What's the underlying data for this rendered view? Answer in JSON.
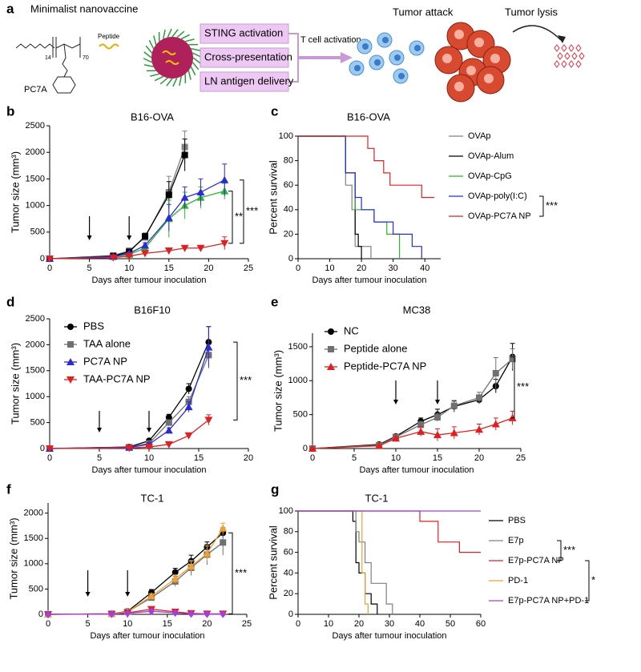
{
  "figure_a": {
    "label": "a",
    "title": "Minimalist nanovaccine",
    "peptide": "Peptide",
    "polymer": "PC7A",
    "subscripts": [
      "14",
      "70"
    ],
    "functions": [
      "STING activation",
      "Cross-presentation",
      "LN antigen delivery"
    ],
    "activation": "T cell activation",
    "attack": "Tumor attack",
    "lysis": "Tumor lysis"
  },
  "chart_data": [
    {
      "panel": "b",
      "type": "line",
      "title": "B16-OVA",
      "xlabel": "Days after tumour inoculation",
      "ylabel": "Tumor size (mm³)",
      "xlim": [
        0,
        25
      ],
      "xticks": [
        0,
        5,
        10,
        15,
        20,
        25
      ],
      "ylim": [
        0,
        2500
      ],
      "yticks": [
        0,
        500,
        1000,
        1500,
        2000,
        2500
      ],
      "arrows_x": [
        5,
        10
      ],
      "significance": [
        "**",
        "***"
      ],
      "series": [
        {
          "color": "#808080",
          "marker": "square",
          "x": [
            0,
            8,
            10,
            12,
            15,
            17
          ],
          "values": [
            0,
            60,
            150,
            400,
            1250,
            2100
          ],
          "errors": [
            0,
            20,
            30,
            60,
            300,
            300
          ]
        },
        {
          "color": "#000000",
          "marker": "square",
          "x": [
            0,
            8,
            10,
            12,
            15,
            17
          ],
          "values": [
            0,
            50,
            130,
            420,
            1200,
            1950
          ],
          "errors": [
            0,
            20,
            30,
            60,
            250,
            300
          ]
        },
        {
          "color": "#2fb52f",
          "marker": "triangle-up",
          "x": [
            0,
            8,
            10,
            12,
            15,
            17,
            19,
            22
          ],
          "values": [
            0,
            40,
            80,
            200,
            750,
            1000,
            1150,
            1270
          ],
          "errors": [
            0,
            10,
            20,
            50,
            350,
            250,
            200,
            150
          ]
        },
        {
          "color": "#2b2bd6",
          "marker": "triangle-up",
          "x": [
            0,
            8,
            10,
            12,
            15,
            17,
            19,
            22
          ],
          "values": [
            0,
            40,
            100,
            250,
            770,
            1150,
            1250,
            1480
          ],
          "errors": [
            0,
            10,
            20,
            50,
            250,
            200,
            250,
            300
          ]
        },
        {
          "color": "#e02020",
          "marker": "triangle-down",
          "x": [
            0,
            8,
            10,
            12,
            15,
            17,
            19,
            22
          ],
          "values": [
            0,
            20,
            50,
            100,
            150,
            200,
            200,
            290
          ],
          "errors": [
            0,
            5,
            10,
            20,
            30,
            40,
            50,
            120
          ]
        }
      ]
    },
    {
      "panel": "c",
      "type": "step",
      "title": "B16-OVA",
      "xlabel": "Days after tumour inoculation",
      "ylabel": "Percent survival",
      "xlim": [
        0,
        45
      ],
      "xticks": [
        0,
        10,
        20,
        30,
        40
      ],
      "ylim": [
        0,
        100
      ],
      "yticks": [
        0,
        20,
        40,
        60,
        80,
        100
      ],
      "legend": "right",
      "significance": [
        "***"
      ],
      "series": [
        {
          "name": "OVAp",
          "color": "#808080",
          "x": [
            0,
            15,
            17,
            18,
            23
          ],
          "values": [
            100,
            60,
            40,
            10,
            0
          ]
        },
        {
          "name": "OVAp-Alum",
          "color": "#000000",
          "x": [
            0,
            15,
            18,
            19,
            20
          ],
          "values": [
            100,
            70,
            20,
            10,
            0
          ]
        },
        {
          "name": "OVAp-CpG",
          "color": "#2fb52f",
          "x": [
            0,
            15,
            18,
            24,
            28,
            32
          ],
          "values": [
            100,
            70,
            40,
            30,
            20,
            0
          ]
        },
        {
          "name": "OVAp-poly(I:C)",
          "color": "#2b2bd6",
          "x": [
            0,
            15,
            18,
            20,
            24,
            30,
            36,
            39
          ],
          "values": [
            100,
            70,
            50,
            40,
            30,
            20,
            10,
            0
          ]
        },
        {
          "name": "OVAp-PC7A NP",
          "color": "#e02020",
          "x": [
            0,
            22,
            24,
            27,
            29,
            32,
            39,
            43
          ],
          "values": [
            100,
            90,
            80,
            70,
            60,
            60,
            50,
            50
          ]
        }
      ]
    },
    {
      "panel": "d",
      "type": "line",
      "title": "B16F10",
      "xlabel": "Days after tumour inoculation",
      "ylabel": "Tumor size (mm³)",
      "xlim": [
        0,
        20
      ],
      "xticks": [
        0,
        5,
        10,
        15,
        20
      ],
      "ylim": [
        0,
        2500
      ],
      "yticks": [
        0,
        500,
        1000,
        1500,
        2000,
        2500
      ],
      "arrows_x": [
        5,
        10
      ],
      "legend": "upper left",
      "significance": [
        "***"
      ],
      "series": [
        {
          "name": "PBS",
          "color": "#000000",
          "marker": "circle",
          "x": [
            0,
            8,
            10,
            12,
            14,
            16
          ],
          "values": [
            0,
            30,
            150,
            600,
            1150,
            2050
          ],
          "errors": [
            0,
            10,
            30,
            60,
            100,
            300
          ]
        },
        {
          "name": "TAA alone",
          "color": "#707070",
          "marker": "square",
          "x": [
            0,
            8,
            10,
            12,
            14,
            16
          ],
          "values": [
            0,
            25,
            100,
            500,
            900,
            1800
          ],
          "errors": [
            0,
            10,
            30,
            50,
            100,
            200
          ]
        },
        {
          "name": "PC7A NP",
          "color": "#2b2bd6",
          "marker": "triangle-up",
          "x": [
            0,
            8,
            10,
            12,
            14,
            16
          ],
          "values": [
            0,
            20,
            80,
            350,
            800,
            1950
          ],
          "errors": [
            0,
            10,
            30,
            50,
            100,
            400
          ]
        },
        {
          "name": "TAA-PC7A NP",
          "color": "#e02020",
          "marker": "triangle-down",
          "x": [
            0,
            8,
            10,
            12,
            14,
            16
          ],
          "values": [
            0,
            10,
            30,
            80,
            250,
            550
          ],
          "errors": [
            0,
            5,
            10,
            20,
            50,
            100
          ]
        }
      ]
    },
    {
      "panel": "e",
      "type": "line",
      "title": "MC38",
      "xlabel": "Days after tumour inoculation",
      "ylabel": "Tumor size (mm³)",
      "xlim": [
        0,
        25
      ],
      "xticks": [
        0,
        5,
        10,
        15,
        20,
        25
      ],
      "ylim": [
        0,
        1700
      ],
      "yticks": [
        0,
        500,
        1000,
        1500
      ],
      "arrows_x": [
        10,
        15
      ],
      "legend": "upper left",
      "significance": [
        "***"
      ],
      "series": [
        {
          "name": "NC",
          "color": "#000000",
          "marker": "circle",
          "x": [
            0,
            8,
            10,
            13,
            15,
            17,
            20,
            22,
            24
          ],
          "values": [
            0,
            60,
            180,
            400,
            500,
            620,
            720,
            920,
            1350
          ],
          "errors": [
            0,
            15,
            30,
            50,
            80,
            80,
            60,
            100,
            200
          ]
        },
        {
          "name": "Peptide alone",
          "color": "#707070",
          "marker": "square",
          "x": [
            0,
            8,
            10,
            13,
            15,
            17,
            20,
            22,
            24
          ],
          "values": [
            0,
            50,
            170,
            350,
            460,
            630,
            750,
            1110,
            1320
          ],
          "errors": [
            0,
            15,
            30,
            50,
            60,
            80,
            80,
            230,
            150
          ]
        },
        {
          "name": "Peptide-PC7A NP",
          "color": "#e02020",
          "marker": "triangle-up",
          "x": [
            0,
            8,
            10,
            13,
            15,
            17,
            20,
            22,
            24
          ],
          "values": [
            0,
            40,
            150,
            250,
            200,
            230,
            280,
            360,
            450
          ],
          "errors": [
            0,
            10,
            30,
            70,
            90,
            90,
            80,
            90,
            100
          ]
        }
      ]
    },
    {
      "panel": "f",
      "type": "line",
      "title": "TC-1",
      "xlabel": "Days after tumour inoculation",
      "ylabel": "Tumor size (mm³)",
      "xlim": [
        0,
        25
      ],
      "xticks": [
        0,
        5,
        10,
        15,
        20,
        25
      ],
      "ylim": [
        0,
        2200
      ],
      "yticks": [
        0,
        500,
        1000,
        1500,
        2000
      ],
      "arrows_x": [
        5,
        10
      ],
      "significance": [
        "***"
      ],
      "series": [
        {
          "color": "#000000",
          "marker": "circle",
          "x": [
            0,
            8,
            10,
            13,
            16,
            18,
            20,
            22
          ],
          "values": [
            0,
            10,
            60,
            430,
            830,
            1050,
            1330,
            1610
          ],
          "errors": [
            0,
            5,
            20,
            60,
            80,
            120,
            100,
            100
          ]
        },
        {
          "color": "#707070",
          "marker": "square",
          "x": [
            0,
            8,
            10,
            13,
            16,
            18,
            20,
            22
          ],
          "values": [
            0,
            10,
            50,
            330,
            650,
            920,
            1180,
            1420
          ],
          "errors": [
            0,
            5,
            20,
            60,
            100,
            150,
            200,
            250
          ]
        },
        {
          "color": "#f0a030",
          "marker": "triangle-up",
          "x": [
            0,
            8,
            10,
            13,
            16,
            18,
            20,
            22
          ],
          "values": [
            0,
            10,
            50,
            360,
            700,
            950,
            1200,
            1700
          ],
          "errors": [
            0,
            5,
            20,
            50,
            80,
            100,
            150,
            100
          ]
        },
        {
          "color": "#e02020",
          "marker": "triangle-down",
          "x": [
            0,
            8,
            10,
            13,
            16,
            18,
            20,
            22
          ],
          "values": [
            0,
            5,
            30,
            100,
            50,
            20,
            10,
            10
          ],
          "errors": [
            0,
            3,
            10,
            30,
            20,
            10,
            5,
            5
          ]
        },
        {
          "color": "#a040e0",
          "marker": "diamond",
          "x": [
            0,
            8,
            10,
            13,
            16,
            18,
            20,
            22
          ],
          "values": [
            0,
            5,
            20,
            60,
            30,
            10,
            5,
            5
          ],
          "errors": [
            0,
            3,
            10,
            20,
            10,
            5,
            3,
            3
          ]
        }
      ]
    },
    {
      "panel": "g",
      "type": "step",
      "title": "TC-1",
      "xlabel": "Days after tumour inoculation",
      "ylabel": "Percent survival",
      "xlim": [
        0,
        60
      ],
      "xticks": [
        0,
        10,
        20,
        30,
        40,
        50,
        60
      ],
      "ylim": [
        0,
        100
      ],
      "yticks": [
        0,
        20,
        40,
        60,
        80,
        100
      ],
      "legend": "right",
      "significance": [
        "***",
        "*"
      ],
      "series": [
        {
          "name": "PBS",
          "color": "#000000",
          "x": [
            0,
            18,
            19,
            20,
            22,
            24,
            26
          ],
          "values": [
            100,
            90,
            50,
            40,
            20,
            10,
            0
          ]
        },
        {
          "name": "E7p",
          "color": "#808080",
          "x": [
            0,
            19,
            20,
            22,
            24,
            29,
            31
          ],
          "values": [
            100,
            80,
            70,
            50,
            30,
            10,
            0
          ]
        },
        {
          "name": "E7p-PC7A NP",
          "color": "#e02020",
          "x": [
            0,
            40,
            46,
            53,
            60
          ],
          "values": [
            100,
            90,
            70,
            60,
            60
          ]
        },
        {
          "name": "PD-1",
          "color": "#f0a030",
          "x": [
            0,
            21,
            22,
            23
          ],
          "values": [
            100,
            40,
            10,
            0
          ]
        },
        {
          "name": "E7p-PC7A NP+PD-1",
          "color": "#a040e0",
          "x": [
            0,
            60
          ],
          "values": [
            100,
            100
          ]
        }
      ]
    }
  ]
}
